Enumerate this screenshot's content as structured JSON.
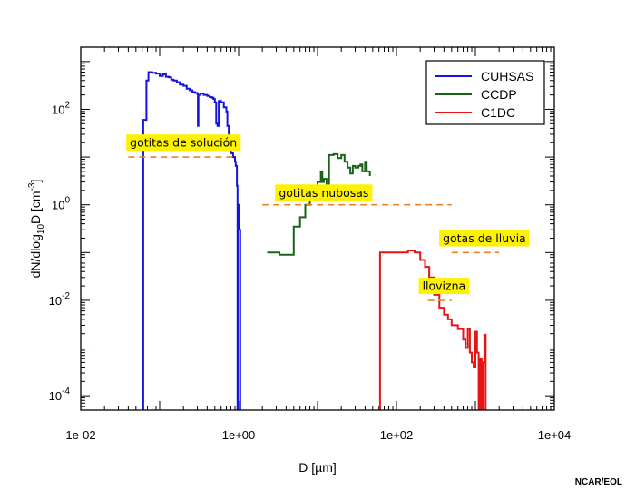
{
  "chart_data": {
    "type": "line",
    "xlabel": "D [µm]",
    "ylabel": {
      "pre": "dN/dlog",
      "sub": "10",
      "mid": "D [cm",
      "sup": "-3",
      "post": "]"
    },
    "x_scale": "log",
    "y_scale": "log",
    "xlim": [
      0.01,
      10000
    ],
    "ylim": [
      5e-05,
      2000
    ],
    "x_ticks": [
      {
        "value": 0.01,
        "label": "1e-02"
      },
      {
        "value": 1,
        "label": "1e+00"
      },
      {
        "value": 100,
        "label": "1e+02"
      },
      {
        "value": 10000,
        "label": "1e+04"
      }
    ],
    "y_ticks": [
      {
        "value": 0.0001,
        "base": "10",
        "exp": "-4"
      },
      {
        "value": 0.01,
        "base": "10",
        "exp": "-2"
      },
      {
        "value": 1,
        "base": "10",
        "exp": "0"
      },
      {
        "value": 100,
        "base": "10",
        "exp": "2"
      }
    ],
    "legend_position": "top-right",
    "series": [
      {
        "name": "CUHSAS",
        "color": "#1414dc",
        "points": [
          [
            0.062,
            5e-05
          ],
          [
            0.062,
            60
          ],
          [
            0.068,
            400
          ],
          [
            0.072,
            600
          ],
          [
            0.08,
            580
          ],
          [
            0.09,
            560
          ],
          [
            0.1,
            500
          ],
          [
            0.11,
            540
          ],
          [
            0.12,
            480
          ],
          [
            0.13,
            470
          ],
          [
            0.14,
            420
          ],
          [
            0.15,
            400
          ],
          [
            0.165,
            370
          ],
          [
            0.18,
            330
          ],
          [
            0.2,
            310
          ],
          [
            0.22,
            270
          ],
          [
            0.24,
            250
          ],
          [
            0.26,
            230
          ],
          [
            0.28,
            220
          ],
          [
            0.3,
            210
          ],
          [
            0.305,
            45
          ],
          [
            0.31,
            200
          ],
          [
            0.33,
            215
          ],
          [
            0.36,
            200
          ],
          [
            0.4,
            190
          ],
          [
            0.43,
            180
          ],
          [
            0.46,
            175
          ],
          [
            0.48,
            165
          ],
          [
            0.5,
            140
          ],
          [
            0.52,
            50
          ],
          [
            0.54,
            45
          ],
          [
            0.56,
            150
          ],
          [
            0.6,
            140
          ],
          [
            0.65,
            110
          ],
          [
            0.7,
            90
          ],
          [
            0.72,
            45
          ],
          [
            0.75,
            20
          ],
          [
            0.8,
            12
          ],
          [
            0.85,
            10
          ],
          [
            0.9,
            8
          ],
          [
            0.92,
            6.5
          ],
          [
            0.95,
            2.5
          ],
          [
            0.97,
            5e-05
          ],
          [
            0.98,
            1
          ],
          [
            1.0,
            0.3
          ],
          [
            1.05,
            5e-05
          ]
        ]
      },
      {
        "name": "CCDP",
        "color": "#1a641a",
        "points": [
          [
            2.3,
            0.1
          ],
          [
            3.3,
            0.1
          ],
          [
            3.3,
            0.09
          ],
          [
            5.0,
            0.09
          ],
          [
            5.0,
            0.35
          ],
          [
            6.0,
            0.55
          ],
          [
            7.0,
            1.0
          ],
          [
            8.0,
            1.4
          ],
          [
            9.0,
            2.0
          ],
          [
            10.0,
            3.0
          ],
          [
            11.0,
            5.0
          ],
          [
            11.5,
            3.0
          ],
          [
            12.0,
            3.5
          ],
          [
            13.0,
            2.5
          ],
          [
            14.0,
            11.0
          ],
          [
            16.0,
            11.5
          ],
          [
            18.0,
            9.5
          ],
          [
            20.0,
            11.0
          ],
          [
            22.0,
            8.0
          ],
          [
            24.0,
            6.0
          ],
          [
            26.0,
            4.5
          ],
          [
            28.0,
            6.5
          ],
          [
            30.0,
            6.0
          ],
          [
            33.0,
            6.5
          ],
          [
            35.0,
            7.0
          ],
          [
            37.0,
            5.0
          ],
          [
            40.0,
            8.0
          ],
          [
            42.0,
            5.0
          ],
          [
            46.0,
            4.0
          ]
        ]
      },
      {
        "name": "C1DC",
        "color": "#e61414",
        "points": [
          [
            62,
            5e-05
          ],
          [
            62,
            0.1
          ],
          [
            100,
            0.1
          ],
          [
            120,
            0.1
          ],
          [
            140,
            0.11
          ],
          [
            170,
            0.1
          ],
          [
            200,
            0.07
          ],
          [
            230,
            0.05
          ],
          [
            260,
            0.03
          ],
          [
            300,
            0.013
          ],
          [
            350,
            0.007
          ],
          [
            400,
            0.005
          ],
          [
            450,
            0.004
          ],
          [
            500,
            0.003
          ],
          [
            600,
            0.0025
          ],
          [
            700,
            0.0015
          ],
          [
            750,
            0.001
          ],
          [
            800,
            0.0025
          ],
          [
            850,
            0.0008
          ],
          [
            900,
            0.0005
          ],
          [
            950,
            0.0004
          ],
          [
            1000,
            0.0022
          ],
          [
            1050,
            0.0008
          ],
          [
            1100,
            5e-05
          ],
          [
            1150,
            0.0006
          ],
          [
            1200,
            5e-05
          ],
          [
            1250,
            0.0005
          ],
          [
            1300,
            0.0019
          ],
          [
            1350,
            5e-05
          ]
        ]
      }
    ],
    "annotations": [
      {
        "label": "gotitas de solución",
        "x": 0.2,
        "y": 20,
        "line_x": [
          0.04,
          0.9
        ],
        "line_y": 10
      },
      {
        "label": "gotitas nubosas",
        "x": 12,
        "y": 1.8,
        "line_x": [
          2,
          500
        ],
        "line_y": 1
      },
      {
        "label": "gotas de lluvia",
        "x": 1300,
        "y": 0.2,
        "line_x": [
          500,
          2000
        ],
        "line_y": 0.1
      },
      {
        "label": "llovizna",
        "x": 400,
        "y": 0.02,
        "line_x": [
          250,
          500
        ],
        "line_y": 0.01
      }
    ],
    "annotation_colors": {
      "box": "#fff200",
      "dash": "#f08020"
    },
    "credit": "NCAR/EOL"
  }
}
